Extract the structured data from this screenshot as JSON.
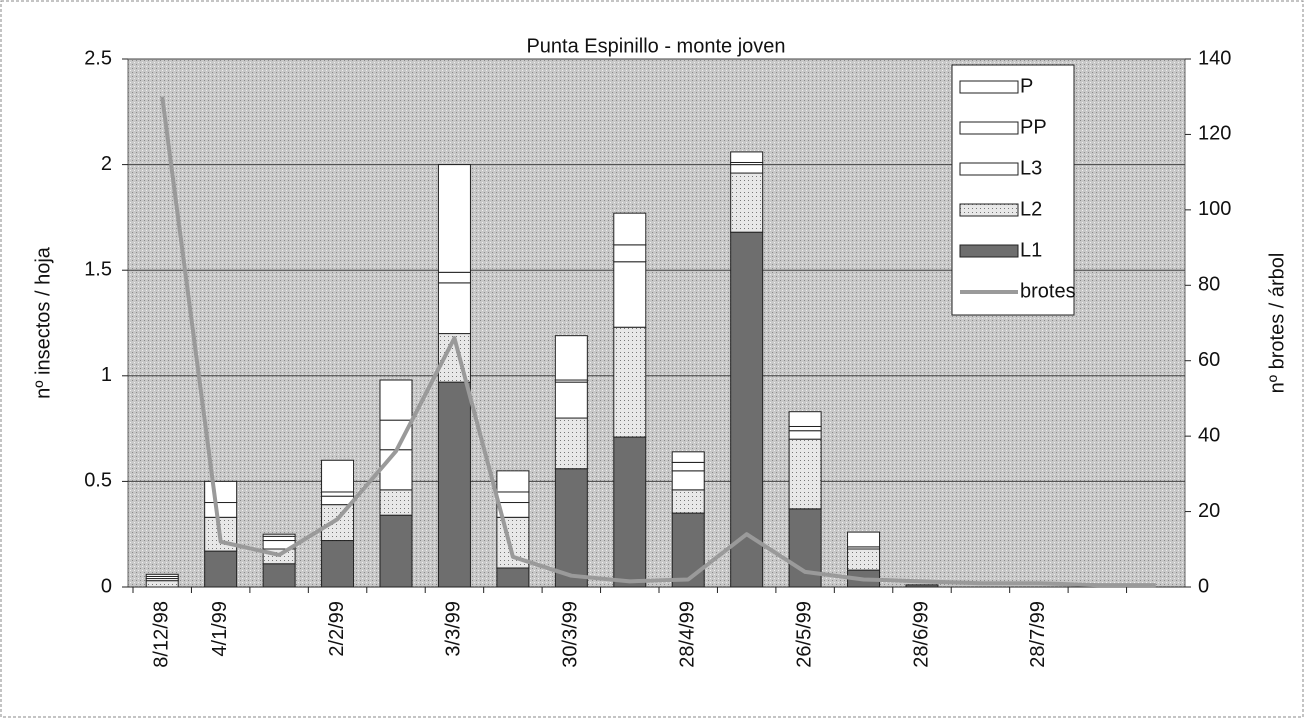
{
  "chart_data": {
    "type": "bar",
    "title": "Punta Espinillo - monte joven",
    "y_label": "nº insectos / hoja",
    "y2_label": "nº brotes / árbol",
    "categories": [
      "8/12/98",
      "4/1/99",
      null,
      "2/2/99",
      null,
      "3/3/99",
      null,
      "30/3/99",
      null,
      "28/4/99",
      null,
      "26/5/99",
      null,
      "28/6/99",
      null,
      "28/7/99",
      null,
      null
    ],
    "series": [
      {
        "name": "L1",
        "color": "#6e6e6e",
        "values": [
          0,
          0.17,
          0.11,
          0.22,
          0.34,
          0.97,
          0.09,
          0.56,
          0.71,
          0.35,
          1.68,
          0.37,
          0.08,
          0.01,
          0,
          0,
          0,
          0
        ]
      },
      {
        "name": "L2",
        "color": "#d4d4d4",
        "values": [
          0.03,
          0.16,
          0.07,
          0.17,
          0.12,
          0.23,
          0.24,
          0.24,
          0.52,
          0.11,
          0.28,
          0.33,
          0.1,
          0,
          0,
          0,
          0,
          0
        ]
      },
      {
        "name": "L3",
        "color": "#ffffff",
        "values": [
          0.01,
          0.07,
          0.04,
          0.04,
          0.19,
          0.24,
          0.07,
          0.17,
          0.31,
          0.09,
          0.04,
          0.04,
          0.01,
          0,
          0,
          0,
          0,
          0
        ]
      },
      {
        "name": "PP",
        "color": "#ffffff",
        "values": [
          0.01,
          0.0,
          0.02,
          0.02,
          0.14,
          0.05,
          0.05,
          0.01,
          0.08,
          0.04,
          0.01,
          0.02,
          0,
          0,
          0,
          0,
          0,
          0
        ]
      },
      {
        "name": "P",
        "color": "#ffffff",
        "values": [
          0.01,
          0.1,
          0.01,
          0.15,
          0.19,
          0.51,
          0.1,
          0.21,
          0.15,
          0.05,
          0.05,
          0.07,
          0.07,
          0,
          0,
          0,
          0,
          0
        ]
      },
      {
        "name": "brotes",
        "color": "#9a9a9a",
        "type": "line",
        "axis": "y2",
        "values": [
          130,
          12,
          8.5,
          18,
          36,
          66,
          8,
          3,
          1.5,
          2,
          14,
          4,
          2,
          1.5,
          1,
          1,
          0.5,
          0.5
        ]
      }
    ],
    "ylim": [
      0,
      2.5
    ],
    "yticks": [
      0,
      0.5,
      1,
      1.5,
      2,
      2.5
    ],
    "y2lim": [
      0,
      140
    ],
    "y2ticks": [
      0,
      20,
      40,
      60,
      80,
      100,
      120,
      140
    ],
    "grid": true,
    "legend": "upper right"
  }
}
